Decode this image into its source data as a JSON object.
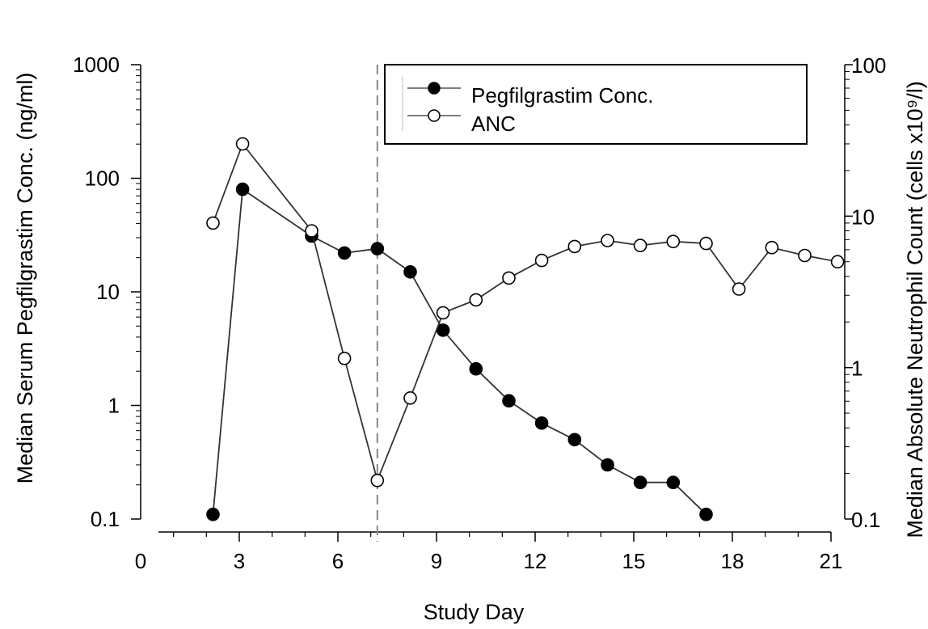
{
  "chart_data": {
    "type": "line",
    "xlabel": "Study Day",
    "ylabel_left": "Median Serum Pegfilgrastim Conc. (ng/ml)",
    "ylabel_right": "Median Absolute Neutrophil Count (cells x10⁹/l)",
    "x_ticks": [
      0,
      3,
      6,
      9,
      12,
      15,
      18,
      21
    ],
    "xlim": [
      0,
      21
    ],
    "y_left_scale": "log",
    "y_left_lim": [
      0.1,
      1000
    ],
    "y_left_ticks": [
      "0.1",
      "1",
      "10",
      "100",
      "1000"
    ],
    "y_right_scale": "log",
    "y_right_lim": [
      0.1,
      100
    ],
    "y_right_ticks": [
      "0.1",
      "1",
      "10",
      "100"
    ],
    "vertical_dashed_line_x": 7.2,
    "grid": false,
    "legend_position": "top-right",
    "series": [
      {
        "name": "Pegfilgrastim Conc.",
        "axis": "left",
        "marker": "filled-circle",
        "color": "#000000",
        "x": [
          2.2,
          3.1,
          5.2,
          6.2,
          7.2,
          8.2,
          9.2,
          10.2,
          11.2,
          12.2,
          13.2,
          14.2,
          15.2,
          16.2,
          17.2
        ],
        "y": [
          0.11,
          80,
          31,
          22,
          24,
          15,
          4.6,
          2.1,
          1.1,
          0.7,
          0.5,
          0.3,
          0.21,
          0.21,
          0.11
        ]
      },
      {
        "name": "ANC",
        "axis": "right",
        "marker": "open-circle",
        "color": "#000000",
        "x": [
          2.2,
          3.1,
          5.2,
          6.2,
          7.2,
          8.2,
          9.2,
          10.2,
          11.2,
          12.2,
          13.2,
          14.2,
          15.2,
          16.2,
          17.2,
          18.2,
          19.2,
          20.2,
          21.2
        ],
        "y": [
          9,
          30,
          8,
          1.15,
          0.18,
          0.63,
          2.3,
          2.8,
          3.9,
          5.1,
          6.3,
          6.9,
          6.4,
          6.8,
          6.6,
          3.3,
          6.2,
          5.5,
          5.0
        ]
      }
    ]
  }
}
